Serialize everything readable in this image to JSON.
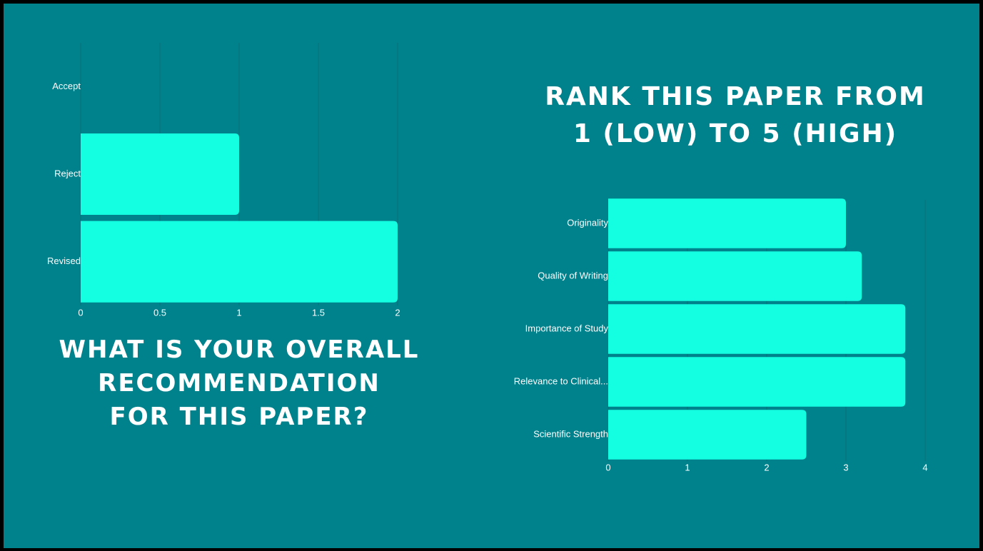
{
  "colors": {
    "background": "#00828c",
    "bar": "#14ffe1",
    "grid": "#0a6f78",
    "text": "#ffffff"
  },
  "titles": {
    "left": "WHAT IS YOUR OVERALL\nRECOMMENDATION\nFOR THIS PAPER?",
    "right": "RANK THIS PAPER FROM\n1 (LOW) TO 5 (HIGH)"
  },
  "chart_data": [
    {
      "type": "bar",
      "orientation": "horizontal",
      "categories": [
        "Accept",
        "Reject",
        "Revised"
      ],
      "values": [
        0,
        1,
        2
      ],
      "xlim": [
        0,
        2
      ],
      "xticks": [
        "0",
        "0.5",
        "1",
        "1.5",
        "2"
      ],
      "grid": true
    },
    {
      "type": "bar",
      "orientation": "horizontal",
      "categories": [
        "Originality",
        "Quality of Writing",
        "Importance of Study",
        "Relevance to Clinical...",
        "Scientific Strength"
      ],
      "values": [
        3.0,
        3.2,
        3.75,
        3.75,
        2.5
      ],
      "xlim": [
        0,
        4
      ],
      "xticks": [
        "0",
        "1",
        "2",
        "3",
        "4"
      ],
      "grid": true
    }
  ]
}
